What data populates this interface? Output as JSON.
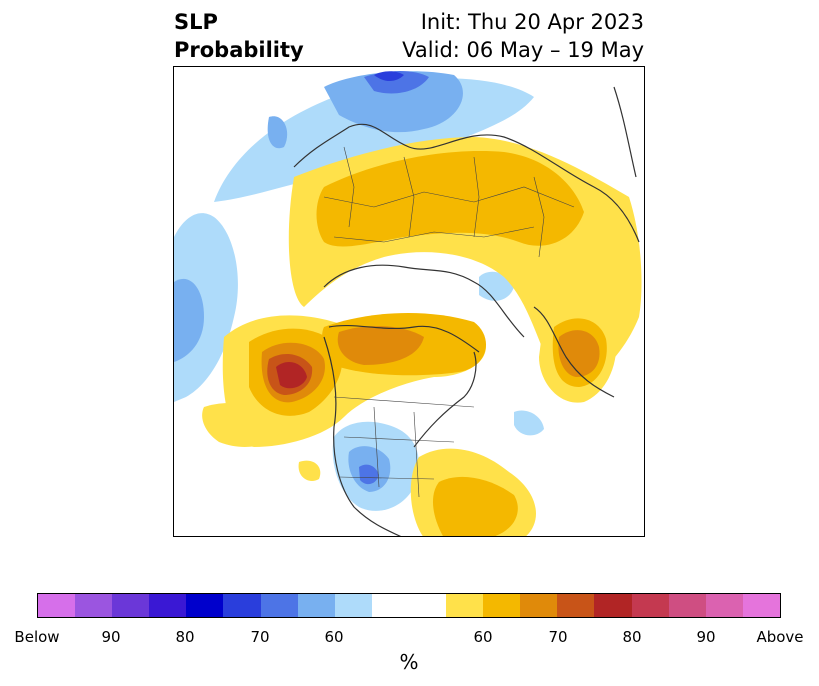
{
  "title": {
    "left_line1": "SLP",
    "left_line2": "Probability",
    "right_line1": "Init: Thu 20 Apr 2023",
    "right_line2": "Valid: 06 May – 19 May"
  },
  "map": {
    "region": "Northern Hemisphere polar stereographic",
    "features": [
      "coastlines",
      "country-borders",
      "state-borders",
      "probability-shading"
    ]
  },
  "colorbar": {
    "unit_label": "%",
    "tick_labels": [
      "Below",
      "90",
      "80",
      "70",
      "60",
      "60",
      "70",
      "80",
      "90",
      "Above"
    ],
    "below_colors": [
      "#d66fea",
      "#9b55e0",
      "#6b37d8",
      "#3a18d4",
      "#0000cc",
      "#2a3edc",
      "#4d74e6",
      "#78b0f0",
      "#aedbfa"
    ],
    "neutral_color": "#ffffff",
    "above_colors": [
      "#ffe14a",
      "#f4b800",
      "#e08a0a",
      "#c85418",
      "#b12525",
      "#c43950",
      "#cf4e82",
      "#db62b0",
      "#e574dc"
    ]
  }
}
